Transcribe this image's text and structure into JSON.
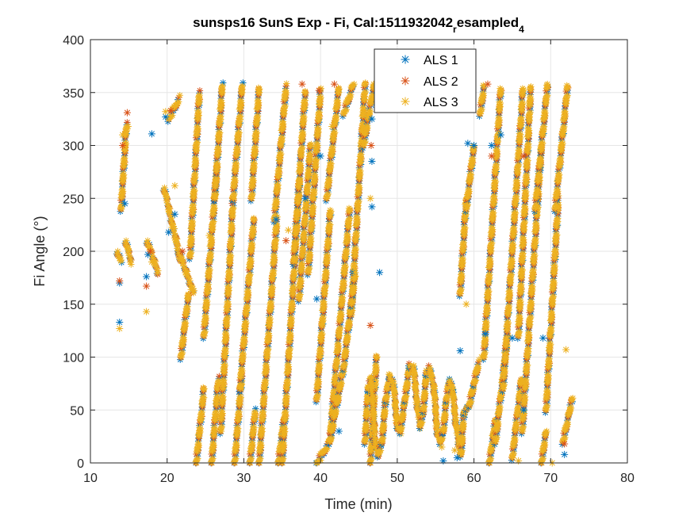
{
  "chart_data": {
    "type": "scatter",
    "title": {
      "main": "sunsps16 SunS Exp - Fi, Cal:1511932042",
      "sub1": "r",
      "mid": "esampled",
      "sub2": "4"
    },
    "xlabel": "Time (min)",
    "ylabel": "Fi Angle (°)",
    "xlim": [
      10,
      80
    ],
    "ylim": [
      0,
      400
    ],
    "xticks": [
      10,
      20,
      30,
      40,
      50,
      60,
      70,
      80
    ],
    "yticks": [
      0,
      50,
      100,
      150,
      200,
      250,
      300,
      350,
      400
    ],
    "grid": true,
    "legend_position": "top-right",
    "marker": "asterisk",
    "colors": {
      "ALS 1": "#0072BD",
      "ALS 2": "#D95319",
      "ALS 3": "#EDB120"
    },
    "series": [
      {
        "name": "ALS 1",
        "color": "#0072BD",
        "points": [
          [
            13.8,
            133
          ],
          [
            13.8,
            170
          ],
          [
            14.5,
            245
          ],
          [
            17.3,
            176
          ],
          [
            17.5,
            197
          ],
          [
            18.0,
            311
          ],
          [
            19.8,
            327
          ],
          [
            20.2,
            218
          ],
          [
            21.0,
            235
          ],
          [
            34.2,
            230
          ],
          [
            38.0,
            250
          ],
          [
            40.0,
            290
          ],
          [
            39.5,
            155
          ],
          [
            42.4,
            30
          ],
          [
            44.2,
            180
          ],
          [
            46.7,
            325
          ],
          [
            46.7,
            285
          ],
          [
            46.7,
            242
          ],
          [
            47.7,
            180
          ],
          [
            56.0,
            2
          ],
          [
            57.8,
            5
          ],
          [
            58.2,
            106
          ],
          [
            59.2,
            302
          ],
          [
            60.0,
            300
          ],
          [
            61.5,
            122
          ],
          [
            62.3,
            300
          ],
          [
            63.5,
            310
          ],
          [
            65.0,
            118
          ],
          [
            66.5,
            50
          ],
          [
            69.0,
            118
          ],
          [
            71.8,
            8
          ]
        ]
      },
      {
        "name": "ALS 2",
        "color": "#D95319",
        "points": [
          [
            13.8,
            172
          ],
          [
            14.2,
            300
          ],
          [
            14.8,
            331
          ],
          [
            17.3,
            167
          ],
          [
            17.8,
            200
          ],
          [
            20.5,
            333
          ],
          [
            22.0,
            200
          ],
          [
            35.5,
            210
          ],
          [
            37.6,
            358
          ],
          [
            39.8,
            352
          ],
          [
            41.8,
            358
          ],
          [
            46.5,
            130
          ],
          [
            46.6,
            300
          ],
          [
            61.8,
            358
          ],
          [
            62.3,
            290
          ],
          [
            66.5,
            290
          ],
          [
            71.8,
            18
          ]
        ]
      },
      {
        "name": "ALS 3",
        "color": "#EDB120",
        "points": [
          [
            13.8,
            127
          ],
          [
            14.2,
            310
          ],
          [
            14.9,
            318
          ],
          [
            17.3,
            143
          ],
          [
            18.0,
            190
          ],
          [
            19.8,
            332
          ],
          [
            21.0,
            262
          ],
          [
            25.5,
            215
          ],
          [
            35.8,
            220
          ],
          [
            39.0,
            250
          ],
          [
            41.5,
            318
          ],
          [
            44.5,
            180
          ],
          [
            46.5,
            250
          ],
          [
            55.8,
            15
          ],
          [
            57.5,
            12
          ],
          [
            59.0,
            150
          ],
          [
            61.0,
            100
          ],
          [
            65.8,
            2
          ],
          [
            70.2,
            0
          ],
          [
            72.0,
            107
          ]
        ]
      }
    ],
    "tracks": [
      {
        "x0": 13.5,
        "x1": 14.0,
        "y0": 200,
        "y1": 190
      },
      {
        "x0": 14.0,
        "x1": 14.7,
        "y0": 240,
        "y1": 320
      },
      {
        "x0": 14.6,
        "x1": 15.3,
        "y0": 210,
        "y1": 190
      },
      {
        "x0": 17.4,
        "x1": 18.8,
        "y0": 210,
        "y1": 180
      },
      {
        "x0": 19.6,
        "x1": 21.8,
        "y0": 260,
        "y1": 190
      },
      {
        "x0": 20.2,
        "x1": 21.6,
        "y0": 325,
        "y1": 345
      },
      {
        "x0": 21.5,
        "x1": 23.5,
        "y0": 200,
        "y1": 160
      },
      {
        "x0": 21.8,
        "x1": 22.8,
        "y0": 100,
        "y1": 160
      },
      {
        "x0": 23.0,
        "x1": 24.2,
        "y0": 195,
        "y1": 350
      },
      {
        "x0": 23.8,
        "x1": 24.8,
        "y0": 0,
        "y1": 70
      },
      {
        "x0": 24.8,
        "x1": 26.5,
        "y0": 120,
        "y1": 280
      },
      {
        "x0": 26.2,
        "x1": 27.2,
        "y0": 250,
        "y1": 358
      },
      {
        "x0": 25.8,
        "x1": 26.7,
        "y0": 0,
        "y1": 80
      },
      {
        "x0": 27.0,
        "x1": 28.6,
        "y0": 30,
        "y1": 250
      },
      {
        "x0": 28.6,
        "x1": 29.8,
        "y0": 250,
        "y1": 358
      },
      {
        "x0": 28.8,
        "x1": 29.7,
        "y0": 0,
        "y1": 80
      },
      {
        "x0": 29.5,
        "x1": 31.3,
        "y0": 70,
        "y1": 230
      },
      {
        "x0": 31.0,
        "x1": 32.0,
        "y0": 250,
        "y1": 355
      },
      {
        "x0": 30.8,
        "x1": 31.5,
        "y0": 0,
        "y1": 50
      },
      {
        "x0": 32.0,
        "x1": 34.3,
        "y0": 0,
        "y1": 230
      },
      {
        "x0": 34.0,
        "x1": 35.5,
        "y0": 230,
        "y1": 356
      },
      {
        "x0": 34.5,
        "x1": 35.2,
        "y0": 0,
        "y1": 40
      },
      {
        "x0": 35.0,
        "x1": 37.3,
        "y0": 0,
        "y1": 270
      },
      {
        "x0": 36.5,
        "x1": 38.0,
        "y0": 190,
        "y1": 350
      },
      {
        "x0": 37.2,
        "x1": 38.7,
        "y0": 155,
        "y1": 300
      },
      {
        "x0": 38.4,
        "x1": 40.0,
        "y0": 180,
        "y1": 352
      },
      {
        "x0": 39.5,
        "x1": 41.3,
        "y0": 60,
        "y1": 240
      },
      {
        "x0": 40.8,
        "x1": 42.4,
        "y0": 250,
        "y1": 355
      },
      {
        "x0": 41.2,
        "x1": 43.8,
        "y0": 20,
        "y1": 240
      },
      {
        "x0": 43.0,
        "x1": 44.3,
        "y0": 330,
        "y1": 358
      },
      {
        "x0": 44.0,
        "x1": 45.8,
        "y0": 140,
        "y1": 358
      },
      {
        "x0": 45.6,
        "x1": 47.0,
        "y0": 300,
        "y1": 358
      },
      {
        "x0": 46.5,
        "x1": 47.3,
        "y0": 0,
        "y1": 100
      }
    ],
    "curves": [
      {
        "points": [
          [
            39.5,
            0
          ],
          [
            41.2,
            20
          ],
          [
            43.0,
            90
          ],
          [
            44.0,
            150
          ],
          [
            44.5,
            178
          ]
        ]
      },
      {
        "points": [
          [
            45.8,
            20
          ],
          [
            46.2,
            70
          ],
          [
            46.6,
            80
          ],
          [
            47.1,
            22
          ],
          [
            47.5,
            8
          ],
          [
            48.0,
            20
          ],
          [
            48.5,
            60
          ],
          [
            49.0,
            82
          ],
          [
            49.5,
            75
          ],
          [
            50.0,
            35
          ],
          [
            50.4,
            30
          ],
          [
            51.0,
            60
          ],
          [
            51.6,
            92
          ],
          [
            52.1,
            92
          ],
          [
            52.6,
            55
          ],
          [
            53.0,
            35
          ],
          [
            53.4,
            50
          ],
          [
            53.8,
            85
          ],
          [
            54.2,
            90
          ],
          [
            54.8,
            70
          ],
          [
            55.2,
            30
          ],
          [
            55.6,
            20
          ],
          [
            56.0,
            30
          ],
          [
            56.4,
            60
          ],
          [
            56.8,
            78
          ],
          [
            57.2,
            70
          ],
          [
            57.6,
            40
          ],
          [
            58.0,
            20
          ],
          [
            58.3,
            8
          ],
          [
            58.7,
            48
          ],
          [
            59.0,
            52
          ],
          [
            59.4,
            55
          ],
          [
            60.0,
            75
          ],
          [
            60.6,
            95
          ]
        ]
      }
    ],
    "right_tracks": [
      {
        "x0": 58.2,
        "x1": 59.0,
        "y0": 160,
        "y1": 250
      },
      {
        "x0": 59.0,
        "x1": 60.0,
        "y0": 240,
        "y1": 300
      },
      {
        "x0": 60.8,
        "x1": 61.3,
        "y0": 330,
        "y1": 355
      },
      {
        "x0": 61.3,
        "x1": 63.5,
        "y0": 100,
        "y1": 355
      },
      {
        "x0": 62.0,
        "x1": 62.8,
        "y0": 0,
        "y1": 40
      },
      {
        "x0": 62.8,
        "x1": 64.4,
        "y0": 20,
        "y1": 120
      },
      {
        "x0": 63.8,
        "x1": 66.4,
        "y0": 70,
        "y1": 355
      },
      {
        "x0": 65.0,
        "x1": 66.2,
        "y0": 5,
        "y1": 80
      },
      {
        "x0": 65.8,
        "x1": 67.4,
        "y0": 120,
        "y1": 355
      },
      {
        "x0": 66.3,
        "x1": 68.8,
        "y0": 30,
        "y1": 300
      },
      {
        "x0": 68.0,
        "x1": 69.6,
        "y0": 240,
        "y1": 358
      },
      {
        "x0": 68.8,
        "x1": 69.4,
        "y0": 0,
        "y1": 30
      },
      {
        "x0": 69.4,
        "x1": 71.0,
        "y0": 50,
        "y1": 250
      },
      {
        "x0": 70.6,
        "x1": 72.2,
        "y0": 240,
        "y1": 356
      },
      {
        "x0": 71.6,
        "x1": 72.8,
        "y0": 20,
        "y1": 60
      }
    ]
  },
  "legend": {
    "items": [
      {
        "label": "ALS 1",
        "color": "#0072BD"
      },
      {
        "label": "ALS 2",
        "color": "#D95319"
      },
      {
        "label": "ALS 3",
        "color": "#EDB120"
      }
    ]
  }
}
